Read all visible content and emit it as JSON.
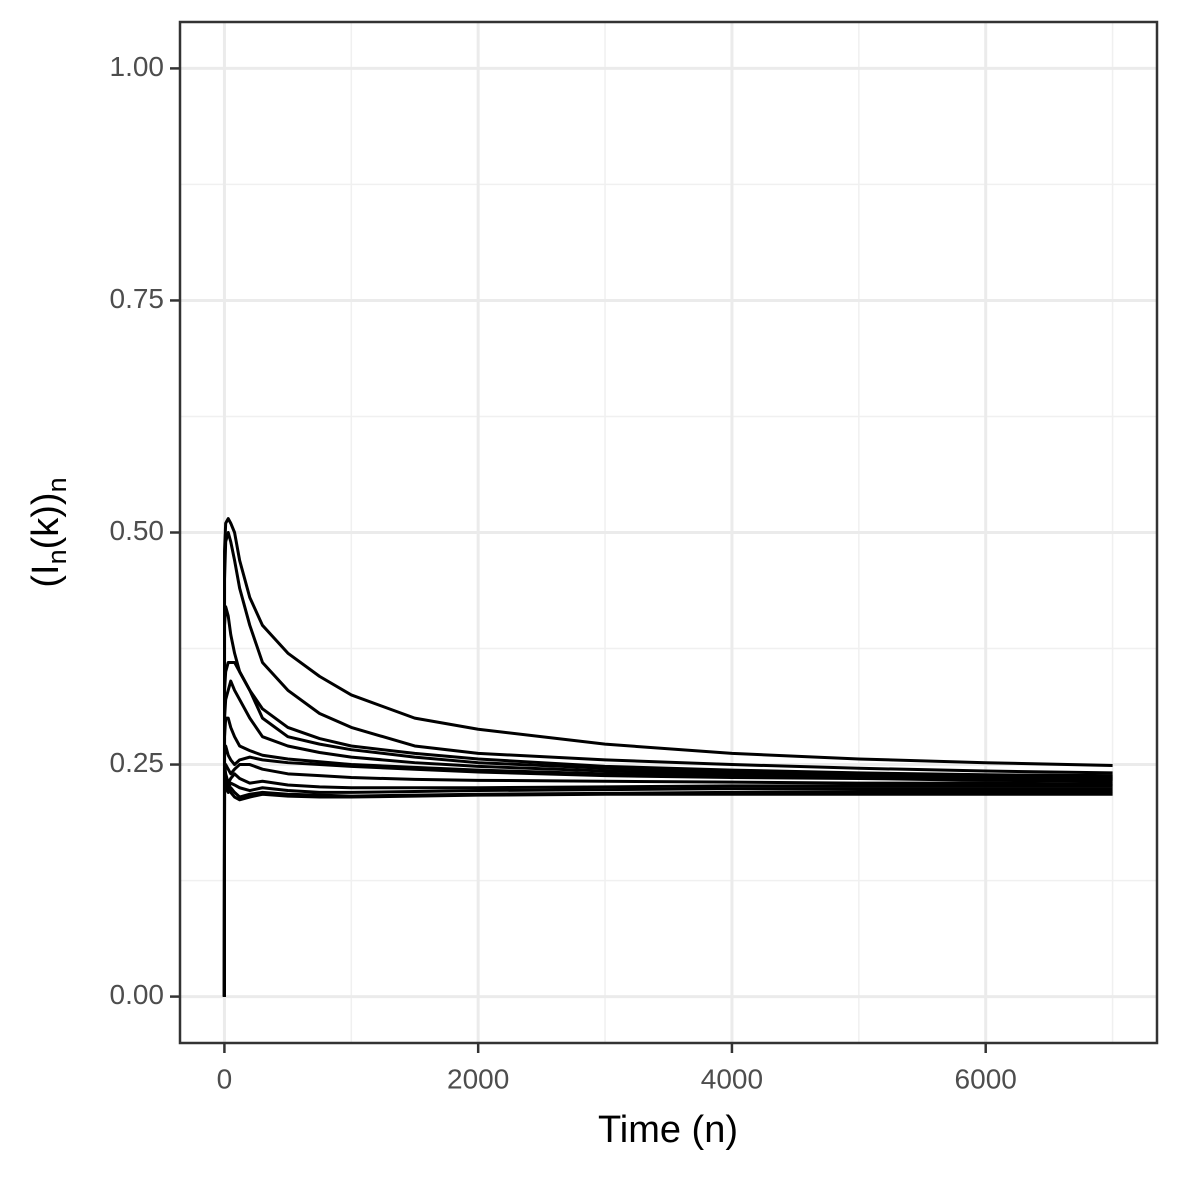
{
  "chart_data": {
    "type": "line",
    "xlabel": "Time (n)",
    "ylabel": [
      "(I",
      "n",
      "(k))",
      "n"
    ],
    "x": [
      0,
      1,
      10,
      30,
      50,
      80,
      120,
      200,
      300,
      500,
      750,
      1000,
      1500,
      2000,
      3000,
      4000,
      5000,
      6000,
      7000
    ],
    "series": [
      {
        "color": "#000000",
        "values": [
          0,
          0.48,
          0.51,
          0.515,
          0.51,
          0.5,
          0.47,
          0.43,
          0.4,
          0.37,
          0.345,
          0.325,
          0.3,
          0.288,
          0.272,
          0.262,
          0.256,
          0.252,
          0.249
        ]
      },
      {
        "color": "#000000",
        "values": [
          0,
          0.45,
          0.49,
          0.5,
          0.49,
          0.47,
          0.44,
          0.4,
          0.36,
          0.33,
          0.305,
          0.29,
          0.27,
          0.262,
          0.255,
          0.25,
          0.246,
          0.243,
          0.241
        ]
      },
      {
        "color": "#000000",
        "values": [
          0,
          0.4,
          0.42,
          0.41,
          0.39,
          0.37,
          0.35,
          0.33,
          0.31,
          0.29,
          0.278,
          0.27,
          0.262,
          0.256,
          0.248,
          0.244,
          0.241,
          0.239,
          0.238
        ]
      },
      {
        "color": "#000000",
        "values": [
          0,
          0.33,
          0.35,
          0.36,
          0.36,
          0.36,
          0.35,
          0.33,
          0.3,
          0.28,
          0.272,
          0.266,
          0.258,
          0.252,
          0.246,
          0.242,
          0.24,
          0.238,
          0.237
        ]
      },
      {
        "color": "#000000",
        "values": [
          0,
          0.3,
          0.32,
          0.33,
          0.34,
          0.33,
          0.32,
          0.3,
          0.28,
          0.27,
          0.263,
          0.258,
          0.252,
          0.248,
          0.243,
          0.24,
          0.238,
          0.236,
          0.235
        ]
      },
      {
        "color": "#000000",
        "values": [
          0,
          0.28,
          0.3,
          0.3,
          0.29,
          0.28,
          0.27,
          0.265,
          0.26,
          0.256,
          0.253,
          0.25,
          0.247,
          0.244,
          0.24,
          0.238,
          0.236,
          0.235,
          0.234
        ]
      },
      {
        "color": "#000000",
        "values": [
          0,
          0.26,
          0.27,
          0.26,
          0.255,
          0.25,
          0.255,
          0.258,
          0.255,
          0.252,
          0.25,
          0.248,
          0.245,
          0.242,
          0.238,
          0.236,
          0.235,
          0.233,
          0.232
        ]
      },
      {
        "color": "#000000",
        "values": [
          0,
          0.24,
          0.25,
          0.245,
          0.24,
          0.245,
          0.25,
          0.25,
          0.245,
          0.24,
          0.238,
          0.236,
          0.234,
          0.233,
          0.232,
          0.231,
          0.23,
          0.23,
          0.229
        ]
      },
      {
        "color": "#000000",
        "values": [
          0,
          0.25,
          0.24,
          0.23,
          0.235,
          0.24,
          0.235,
          0.23,
          0.232,
          0.228,
          0.226,
          0.225,
          0.225,
          0.225,
          0.226,
          0.227,
          0.227,
          0.227,
          0.227
        ]
      },
      {
        "color": "#000000",
        "values": [
          0,
          0.24,
          0.23,
          0.225,
          0.23,
          0.228,
          0.225,
          0.222,
          0.225,
          0.222,
          0.22,
          0.22,
          0.221,
          0.222,
          0.223,
          0.224,
          0.224,
          0.224,
          0.224
        ]
      },
      {
        "color": "#000000",
        "values": [
          0,
          0.23,
          0.225,
          0.22,
          0.225,
          0.22,
          0.215,
          0.218,
          0.22,
          0.218,
          0.217,
          0.216,
          0.217,
          0.218,
          0.219,
          0.22,
          0.221,
          0.221,
          0.221
        ]
      },
      {
        "color": "#000000",
        "values": [
          0,
          0.22,
          0.23,
          0.225,
          0.22,
          0.215,
          0.212,
          0.215,
          0.218,
          0.216,
          0.215,
          0.215,
          0.216,
          0.217,
          0.218,
          0.218,
          0.218,
          0.218,
          0.218
        ]
      }
    ],
    "xlim": [
      -350,
      7350
    ],
    "ylim": [
      -0.05,
      1.05
    ],
    "xticks": [
      0,
      2000,
      4000,
      6000
    ],
    "yticks": [
      {
        "value": 0,
        "label": "0.00"
      },
      {
        "value": 0.25,
        "label": "0.25"
      },
      {
        "value": 0.5,
        "label": "0.50"
      },
      {
        "value": 0.75,
        "label": "0.75"
      },
      {
        "value": 1,
        "label": "1.00"
      }
    ],
    "x_minor_ticks": [
      1000,
      3000,
      5000,
      7000
    ],
    "y_minor_ticks": [
      0.125,
      0.375,
      0.625,
      0.875
    ],
    "grid": true
  }
}
